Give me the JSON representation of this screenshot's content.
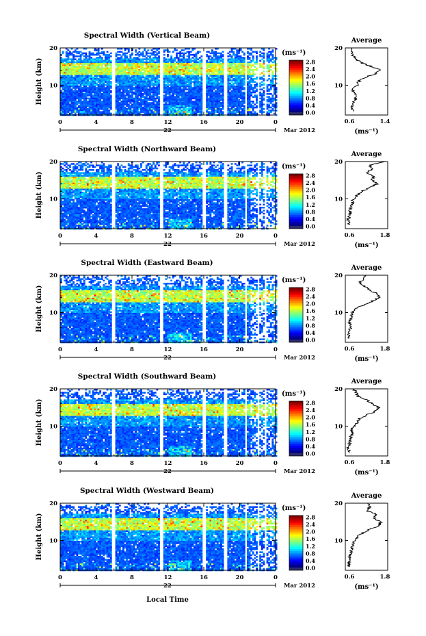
{
  "figure": {
    "x_axis_title": "Local Time",
    "date_label": "Mar 2012",
    "day_label": "22"
  },
  "chart_data": [
    {
      "type": "heatmap",
      "title": "Spectral Width (Vertical Beam)",
      "ylabel": "Height (km)",
      "xlabel": "Local Time",
      "x_ticks": [
        "0",
        "4",
        "8",
        "12",
        "16",
        "20",
        "0"
      ],
      "y_ticks": [
        "10",
        "20"
      ],
      "xlim": [
        0,
        24
      ],
      "ylim": [
        2,
        20
      ],
      "colorbar": {
        "unit": "(ms⁻¹)",
        "ticks": [
          "2.8",
          "2.4",
          "2.0",
          "1.6",
          "1.2",
          "0.8",
          "0.4",
          "0.0"
        ],
        "range": [
          0,
          2.8
        ]
      },
      "profile": {
        "title": "Average",
        "xlabel": "(ms⁻¹)",
        "xlim": [
          0.6,
          1.4
        ],
        "x_ticks": [
          "0.6",
          "1.4"
        ],
        "y_ticks": [
          "10",
          "20"
        ],
        "heights": [
          3,
          4,
          5,
          6,
          7,
          8,
          9,
          10,
          11,
          12,
          13,
          14,
          15,
          16,
          17,
          18,
          19,
          20
        ],
        "values": [
          0.75,
          0.72,
          0.74,
          0.78,
          0.8,
          0.76,
          0.74,
          0.82,
          0.85,
          0.95,
          1.15,
          1.28,
          1.1,
          0.9,
          0.8,
          0.74,
          0.72,
          0.7
        ]
      }
    },
    {
      "type": "heatmap",
      "title": "Spectral Width (Northward Beam)",
      "ylabel": "Height (km)",
      "xlabel": "Local Time",
      "x_ticks": [
        "0",
        "4",
        "8",
        "12",
        "16",
        "20",
        "0"
      ],
      "y_ticks": [
        "10",
        "20"
      ],
      "xlim": [
        0,
        24
      ],
      "ylim": [
        2,
        20
      ],
      "colorbar": {
        "unit": "(ms⁻¹)",
        "ticks": [
          "2.8",
          "2.4",
          "2.0",
          "1.6",
          "1.2",
          "0.8",
          "0.4",
          "0.0"
        ],
        "range": [
          0,
          2.8
        ]
      },
      "profile": {
        "title": "Average",
        "xlabel": "(ms⁻¹)",
        "xlim": [
          0.6,
          1.8
        ],
        "x_ticks": [
          "0.6",
          "1.8"
        ],
        "y_ticks": [
          "10",
          "20"
        ],
        "heights": [
          3,
          4,
          5,
          6,
          7,
          8,
          9,
          10,
          11,
          12,
          13,
          14,
          15,
          16,
          17,
          18,
          19,
          20
        ],
        "values": [
          0.72,
          0.68,
          0.7,
          0.74,
          0.72,
          0.78,
          0.8,
          0.82,
          0.95,
          1.05,
          1.3,
          1.5,
          1.35,
          1.4,
          1.2,
          1.35,
          1.3,
          1.7
        ]
      }
    },
    {
      "type": "heatmap",
      "title": "Spectral Width (Eastward Beam)",
      "ylabel": "Height (km)",
      "xlabel": "Local Time",
      "x_ticks": [
        "0",
        "4",
        "8",
        "12",
        "16",
        "20",
        "0"
      ],
      "y_ticks": [
        "10",
        "20"
      ],
      "xlim": [
        0,
        24
      ],
      "ylim": [
        2,
        20
      ],
      "colorbar": {
        "unit": "(ms⁻¹)",
        "ticks": [
          "2.8",
          "2.4",
          "2.0",
          "1.6",
          "1.2",
          "0.8",
          "0.4",
          "0.0"
        ],
        "range": [
          0,
          2.8
        ]
      },
      "profile": {
        "title": "Average",
        "xlabel": "(ms⁻¹)",
        "xlim": [
          0.6,
          1.8
        ],
        "x_ticks": [
          "0.6",
          "1.8"
        ],
        "y_ticks": [
          "10",
          "20"
        ],
        "heights": [
          3,
          4,
          5,
          6,
          7,
          8,
          9,
          10,
          11,
          12,
          13,
          14,
          15,
          16,
          17,
          18,
          19,
          20
        ],
        "values": [
          0.7,
          0.68,
          0.72,
          0.75,
          0.72,
          0.74,
          0.78,
          0.8,
          0.9,
          1.1,
          1.35,
          1.55,
          1.5,
          1.3,
          1.15,
          1.0,
          1.1,
          1.2
        ]
      }
    },
    {
      "type": "heatmap",
      "title": "Spectral Width (Southward Beam)",
      "ylabel": "Height (km)",
      "xlabel": "Local Time",
      "x_ticks": [
        "0",
        "4",
        "8",
        "12",
        "16",
        "20",
        "0"
      ],
      "y_ticks": [
        "10",
        "20"
      ],
      "xlim": [
        0,
        24
      ],
      "ylim": [
        2,
        20
      ],
      "colorbar": {
        "unit": "(ms⁻¹)",
        "ticks": [
          "2.8",
          "2.4",
          "2.0",
          "1.6",
          "1.2",
          "0.8",
          "0.4",
          "0.0"
        ],
        "range": [
          0,
          2.8
        ]
      },
      "profile": {
        "title": "Average",
        "xlabel": "(ms⁻¹)",
        "xlim": [
          0.6,
          1.8
        ],
        "x_ticks": [
          "0.6",
          "1.8"
        ],
        "y_ticks": [
          "10",
          "20"
        ],
        "heights": [
          3,
          4,
          5,
          6,
          7,
          8,
          9,
          10,
          11,
          12,
          13,
          14,
          15,
          16,
          17,
          18,
          19,
          20
        ],
        "values": [
          0.72,
          0.68,
          0.7,
          0.74,
          0.76,
          0.78,
          0.8,
          0.84,
          0.95,
          1.0,
          1.2,
          1.45,
          1.55,
          1.35,
          1.2,
          0.95,
          0.9,
          0.85
        ]
      }
    },
    {
      "type": "heatmap",
      "title": "Spectral Width (Westward Beam)",
      "ylabel": "Height (km)",
      "xlabel": "Local Time",
      "x_ticks": [
        "0",
        "4",
        "8",
        "12",
        "16",
        "20",
        "0"
      ],
      "y_ticks": [
        "10",
        "20"
      ],
      "xlim": [
        0,
        24
      ],
      "ylim": [
        2,
        20
      ],
      "colorbar": {
        "unit": "(ms⁻¹)",
        "ticks": [
          "2.8",
          "2.4",
          "2.0",
          "1.6",
          "1.2",
          "0.8",
          "0.4",
          "0.0"
        ],
        "range": [
          0,
          2.8
        ]
      },
      "profile": {
        "title": "Average",
        "xlabel": "(ms⁻¹)",
        "xlim": [
          0.6,
          1.8
        ],
        "x_ticks": [
          "0.6",
          "1.8"
        ],
        "y_ticks": [
          "10",
          "20"
        ],
        "heights": [
          3,
          4,
          5,
          6,
          7,
          8,
          9,
          10,
          11,
          12,
          13,
          14,
          15,
          16,
          17,
          18,
          19,
          20
        ],
        "values": [
          0.72,
          0.7,
          0.72,
          0.74,
          0.76,
          0.8,
          0.82,
          0.85,
          0.95,
          1.1,
          1.3,
          1.55,
          1.6,
          1.4,
          1.5,
          1.2,
          1.3,
          1.25
        ]
      }
    }
  ]
}
